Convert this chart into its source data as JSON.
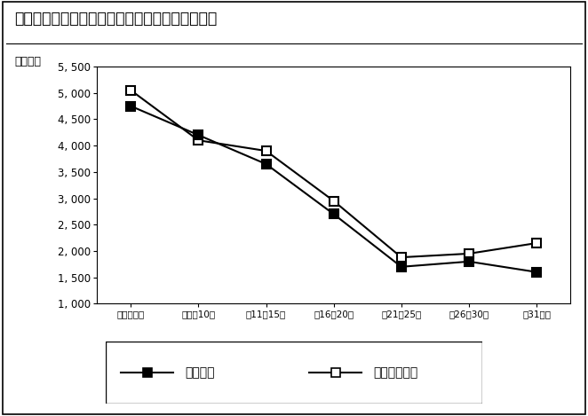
{
  "title": "図表６－１　中古マンションの築年帯別平均価格",
  "ylabel": "（万円）",
  "categories": [
    "築０～５年",
    "築６～10年",
    "築11～15年",
    "築16～20年",
    "築21～25年",
    "築26～30年",
    "築31年～"
  ],
  "series_keiyaku": [
    4750,
    4200,
    3650,
    2700,
    1700,
    1800,
    1600
  ],
  "series_shinki": [
    5050,
    4100,
    3900,
    2950,
    1880,
    1950,
    2150
  ],
  "ylim_min": 1000,
  "ylim_max": 5500,
  "yticks": [
    1000,
    1500,
    2000,
    2500,
    3000,
    3500,
    4000,
    4500,
    5000,
    5500
  ],
  "ytick_labels": [
    "1, 000",
    "1, 500",
    "2, 000",
    "2, 500",
    "3, 000",
    "3, 500",
    "4, 000",
    "4, 500",
    "5, 000",
    "5, 500"
  ],
  "legend_keiyaku": "成約物件",
  "legend_shinki": "新規登録物件",
  "color_line": "#000000",
  "bg_color": "#ffffff"
}
